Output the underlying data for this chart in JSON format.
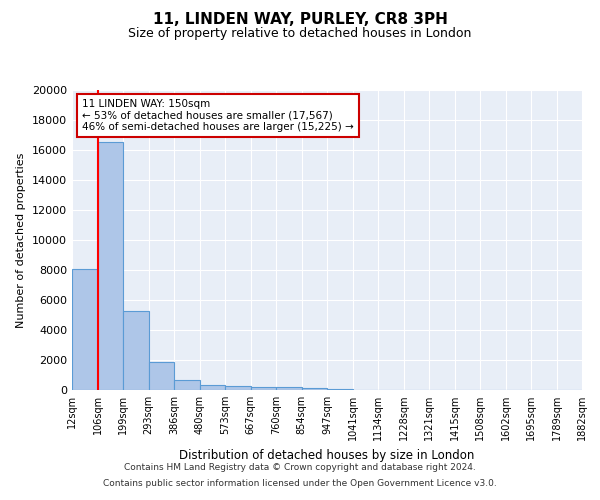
{
  "title1": "11, LINDEN WAY, PURLEY, CR8 3PH",
  "title2": "Size of property relative to detached houses in London",
  "xlabel": "Distribution of detached houses by size in London",
  "ylabel": "Number of detached properties",
  "bar_labels": [
    "12sqm",
    "106sqm",
    "199sqm",
    "293sqm",
    "386sqm",
    "480sqm",
    "573sqm",
    "667sqm",
    "760sqm",
    "854sqm",
    "947sqm",
    "1041sqm",
    "1134sqm",
    "1228sqm",
    "1321sqm",
    "1415sqm",
    "1508sqm",
    "1602sqm",
    "1695sqm",
    "1789sqm",
    "1882sqm"
  ],
  "bar_heights": [
    8100,
    16500,
    5300,
    1850,
    700,
    330,
    250,
    200,
    180,
    150,
    50,
    30,
    20,
    15,
    10,
    8,
    5,
    4,
    3,
    2
  ],
  "bar_color": "#aec6e8",
  "bar_edge_color": "#5b9bd5",
  "background_color": "#e8eef7",
  "red_line_x": 1,
  "annotation_line1": "11 LINDEN WAY: 150sqm",
  "annotation_line2": "← 53% of detached houses are smaller (17,567)",
  "annotation_line3": "46% of semi-detached houses are larger (15,225) →",
  "annotation_box_color": "#ffffff",
  "annotation_box_edge": "#cc0000",
  "footer1": "Contains HM Land Registry data © Crown copyright and database right 2024.",
  "footer2": "Contains public sector information licensed under the Open Government Licence v3.0.",
  "ylim": [
    0,
    20000
  ],
  "yticks": [
    0,
    2000,
    4000,
    6000,
    8000,
    10000,
    12000,
    14000,
    16000,
    18000,
    20000
  ]
}
